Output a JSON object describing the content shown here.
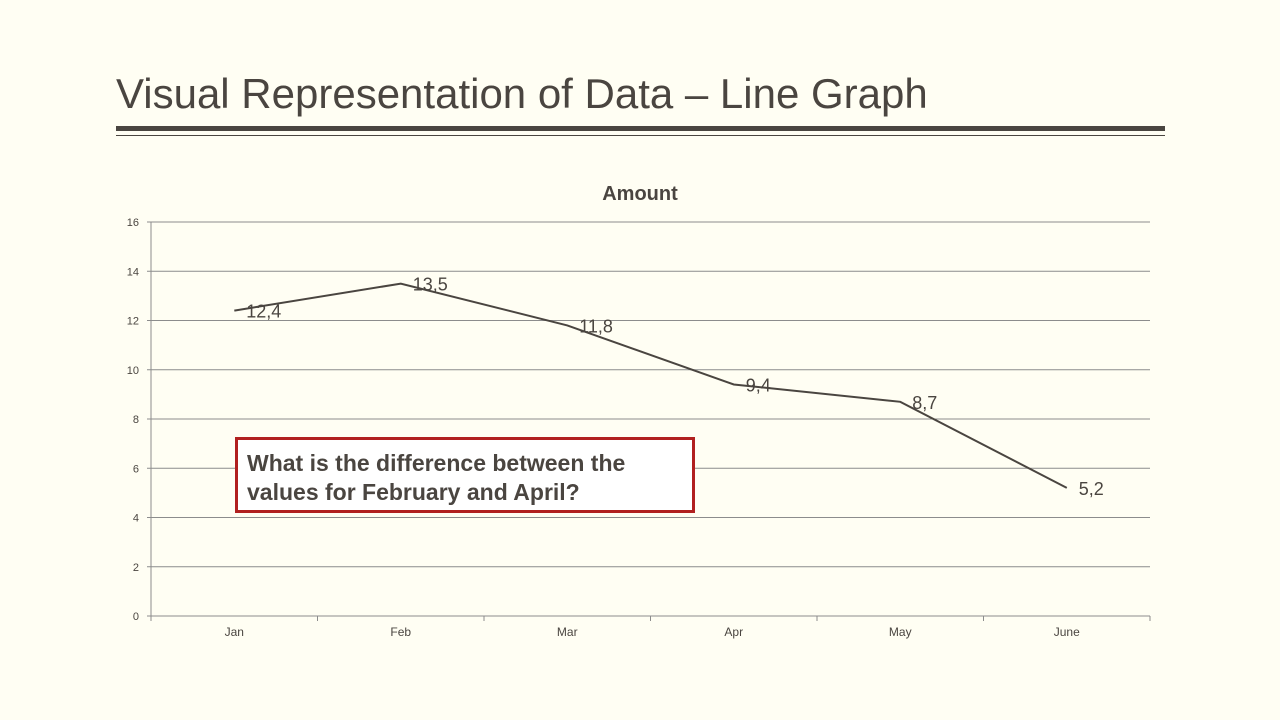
{
  "slide": {
    "title": "Visual Representation of Data – Line Graph"
  },
  "callout": {
    "text": "What is the difference between the values for February and April?"
  },
  "colors": {
    "line": "#4a4540",
    "grid": "#8c8c8c",
    "callout_border": "#b1201f",
    "background": "#fffef3"
  },
  "chart_data": {
    "type": "line",
    "title": "Amount",
    "categories": [
      "Jan",
      "Feb",
      "Mar",
      "Apr",
      "May",
      "June"
    ],
    "values": [
      12.4,
      13.5,
      11.8,
      9.4,
      8.7,
      5.2
    ],
    "data_labels": [
      "12,4",
      "13,5",
      "11,8",
      "9,4",
      "8,7",
      "5,2"
    ],
    "y_ticks": [
      0,
      2,
      4,
      6,
      8,
      10,
      12,
      14,
      16
    ],
    "ylim": [
      0,
      16
    ],
    "grid": true,
    "legend": "none"
  }
}
